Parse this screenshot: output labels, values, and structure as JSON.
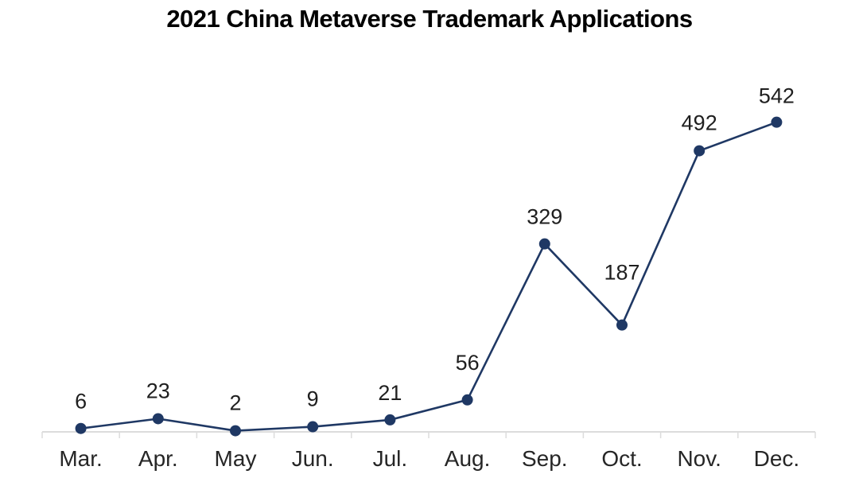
{
  "chart_data": {
    "type": "line",
    "title": "2021 China Metaverse Trademark Applications",
    "categories": [
      "Mar.",
      "Apr.",
      "May",
      "Jun.",
      "Jul.",
      "Aug.",
      "Sep.",
      "Oct.",
      "Nov.",
      "Dec."
    ],
    "values": [
      6,
      23,
      2,
      9,
      21,
      56,
      329,
      187,
      492,
      542
    ],
    "xlabel": "",
    "ylabel": "",
    "ylim": [
      0,
      600
    ],
    "grid": false,
    "legend": "none",
    "data_labels": "above-points",
    "label_offsets": [
      -34,
      -35,
      -35,
      -35,
      -34,
      -47,
      -34,
      -66,
      -35,
      -33
    ],
    "colors": {
      "line": "#1f3864",
      "marker": "#1f3864",
      "data_label": "#1f1f1f",
      "axis_label": "#262626",
      "axis_line": "#dcdcdc",
      "title": "#000000",
      "background": "#ffffff"
    }
  }
}
